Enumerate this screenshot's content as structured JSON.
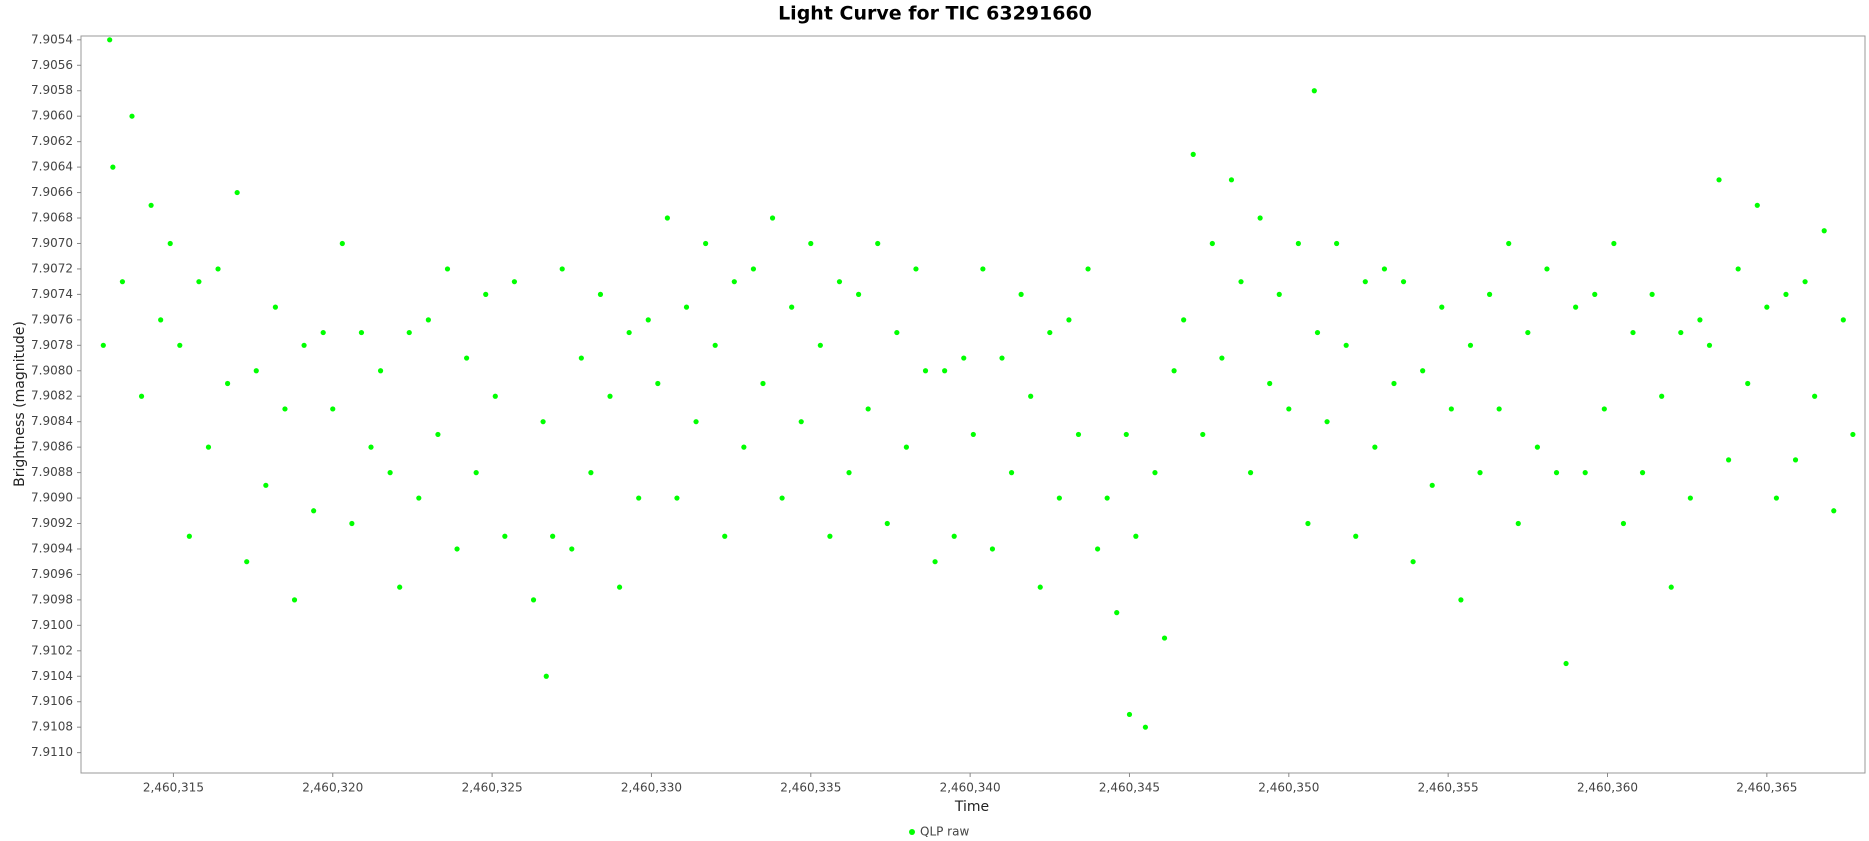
{
  "chart_data": {
    "type": "scatter",
    "title": "Light Curve for TIC 63291660",
    "x_label": "Time",
    "y_label": "Brightness (magnitude)",
    "series": [
      {
        "name": "QLP raw",
        "color": "#00ff00",
        "x": [
          2460312.8,
          2460313.1,
          2460313.4,
          2460313.7,
          2460314.0,
          2460314.3,
          2460314.6,
          2460314.9,
          2460315.2,
          2460315.5,
          2460315.8,
          2460316.1,
          2460316.4,
          2460316.7,
          2460317.0,
          2460317.3,
          2460317.6,
          2460317.9,
          2460318.2,
          2460318.5,
          2460318.8,
          2460319.1,
          2460319.4,
          2460319.7,
          2460320.0,
          2460320.3,
          2460320.6,
          2460320.9,
          2460321.2,
          2460321.5,
          2460321.8,
          2460322.1,
          2460322.4,
          2460322.7,
          2460323.0,
          2460323.3,
          2460323.6,
          2460323.9,
          2460324.2,
          2460324.5,
          2460324.8,
          2460325.1,
          2460325.4,
          2460325.7,
          2460326.3,
          2460326.6,
          2460326.9,
          2460327.2,
          2460327.5,
          2460327.8,
          2460328.1,
          2460328.4,
          2460328.7,
          2460329.0,
          2460329.3,
          2460329.6,
          2460329.9,
          2460330.2,
          2460330.5,
          2460330.8,
          2460331.1,
          2460331.4,
          2460331.7,
          2460332.0,
          2460332.3,
          2460332.6,
          2460332.9,
          2460333.2,
          2460333.5,
          2460333.8,
          2460334.1,
          2460334.4,
          2460334.7,
          2460335.0,
          2460335.3,
          2460335.6,
          2460335.9,
          2460336.2,
          2460336.5,
          2460336.8,
          2460337.1,
          2460337.4,
          2460337.7,
          2460338.0,
          2460338.3,
          2460338.6,
          2460338.9,
          2460339.2,
          2460339.5,
          2460339.8,
          2460340.1,
          2460340.4,
          2460340.7,
          2460341.0,
          2460341.3,
          2460341.6,
          2460341.9,
          2460342.2,
          2460342.5,
          2460342.8,
          2460343.1,
          2460343.4,
          2460343.7,
          2460344.0,
          2460344.3,
          2460344.6,
          2460344.9,
          2460345.2,
          2460345.5,
          2460345.8,
          2460346.1,
          2460346.4,
          2460346.7,
          2460347.0,
          2460347.3,
          2460347.6,
          2460347.9,
          2460348.2,
          2460348.5,
          2460348.8,
          2460349.1,
          2460349.4,
          2460349.7,
          2460350.0,
          2460350.3,
          2460350.6,
          2460350.9,
          2460351.2,
          2460351.5,
          2460351.8,
          2460352.1,
          2460352.4,
          2460352.7,
          2460353.0,
          2460353.3,
          2460353.6,
          2460353.9,
          2460354.2,
          2460354.5,
          2460354.8,
          2460355.1,
          2460355.4,
          2460355.7,
          2460356.0,
          2460356.3,
          2460356.6,
          2460356.9,
          2460357.2,
          2460357.5,
          2460357.8,
          2460358.1,
          2460358.4,
          2460358.7,
          2460359.0,
          2460359.3,
          2460359.6,
          2460359.9,
          2460360.2,
          2460360.5,
          2460360.8,
          2460361.1,
          2460361.4,
          2460361.7,
          2460362.0,
          2460362.3,
          2460362.6,
          2460362.9,
          2460363.2,
          2460363.5,
          2460363.8,
          2460364.1,
          2460364.4,
          2460364.7,
          2460365.0,
          2460365.3,
          2460365.6,
          2460365.9,
          2460366.2,
          2460366.5,
          2460366.8,
          2460367.1,
          2460367.4,
          2460367.7,
          2460313.0,
          2460345.0,
          2460326.7,
          2460350.8
        ],
        "values": [
          7.9078,
          7.9064,
          7.9073,
          7.906,
          7.9082,
          7.9067,
          7.9076,
          7.907,
          7.9078,
          7.9093,
          7.9073,
          7.9086,
          7.9072,
          7.9081,
          7.9066,
          7.9095,
          7.908,
          7.9089,
          7.9075,
          7.9083,
          7.9098,
          7.9078,
          7.9091,
          7.9077,
          7.9083,
          7.907,
          7.9092,
          7.9077,
          7.9086,
          7.908,
          7.9088,
          7.9097,
          7.9077,
          7.909,
          7.9076,
          7.9085,
          7.9072,
          7.9094,
          7.9079,
          7.9088,
          7.9074,
          7.9082,
          7.9093,
          7.9073,
          7.9098,
          7.9084,
          7.9093,
          7.9072,
          7.9094,
          7.9079,
          7.9088,
          7.9074,
          7.9082,
          7.9097,
          7.9077,
          7.909,
          7.9076,
          7.9081,
          7.9068,
          7.909,
          7.9075,
          7.9084,
          7.907,
          7.9078,
          7.9093,
          7.9073,
          7.9086,
          7.9072,
          7.9081,
          7.9068,
          7.909,
          7.9075,
          7.9084,
          7.907,
          7.9078,
          7.9093,
          7.9073,
          7.9088,
          7.9074,
          7.9083,
          7.907,
          7.9092,
          7.9077,
          7.9086,
          7.9072,
          7.908,
          7.9095,
          7.908,
          7.9093,
          7.9079,
          7.9085,
          7.9072,
          7.9094,
          7.9079,
          7.9088,
          7.9074,
          7.9082,
          7.9097,
          7.9077,
          7.909,
          7.9076,
          7.9085,
          7.9072,
          7.9094,
          7.909,
          7.9099,
          7.9085,
          7.9093,
          7.9108,
          7.9088,
          7.9101,
          7.908,
          7.9076,
          7.9063,
          7.9085,
          7.907,
          7.9079,
          7.9065,
          7.9073,
          7.9088,
          7.9068,
          7.9081,
          7.9074,
          7.9083,
          7.907,
          7.9092,
          7.9077,
          7.9084,
          7.907,
          7.9078,
          7.9093,
          7.9073,
          7.9086,
          7.9072,
          7.9081,
          7.9073,
          7.9095,
          7.908,
          7.9089,
          7.9075,
          7.9083,
          7.9098,
          7.9078,
          7.9088,
          7.9074,
          7.9083,
          7.907,
          7.9092,
          7.9077,
          7.9086,
          7.9072,
          7.9088,
          7.9103,
          7.9075,
          7.9088,
          7.9074,
          7.9083,
          7.907,
          7.9092,
          7.9077,
          7.9088,
          7.9074,
          7.9082,
          7.9097,
          7.9077,
          7.909,
          7.9076,
          7.9078,
          7.9065,
          7.9087,
          7.9072,
          7.9081,
          7.9067,
          7.9075,
          7.909,
          7.9074,
          7.9087,
          7.9073,
          7.9082,
          7.9069,
          7.9091,
          7.9076,
          7.9085,
          7.9054,
          7.9107,
          7.9104,
          7.9058
        ]
      }
    ],
    "xlim": [
      2460312.1,
      2460368.08
    ],
    "xticks": [
      {
        "value": 2460315,
        "label": "2,460,315"
      },
      {
        "value": 2460320,
        "label": "2,460,320"
      },
      {
        "value": 2460325,
        "label": "2,460,325"
      },
      {
        "value": 2460330,
        "label": "2,460,330"
      },
      {
        "value": 2460335,
        "label": "2,460,335"
      },
      {
        "value": 2460340,
        "label": "2,460,340"
      },
      {
        "value": 2460345,
        "label": "2,460,345"
      },
      {
        "value": 2460350,
        "label": "2,460,350"
      },
      {
        "value": 2460355,
        "label": "2,460,355"
      },
      {
        "value": 2460360,
        "label": "2,460,360"
      },
      {
        "value": 2460365,
        "label": "2,460,365"
      }
    ],
    "ylim": [
      7.91116,
      7.90537
    ],
    "yticks": [
      7.9054,
      7.9056,
      7.9058,
      {
        "value": 7.906,
        "label": "7.9060"
      },
      7.9062,
      7.9064,
      7.9066,
      7.9068,
      {
        "value": 7.907,
        "label": "7.9070"
      },
      7.9072,
      7.9074,
      7.9076,
      7.9078,
      {
        "value": 7.908,
        "label": "7.9080"
      },
      7.9082,
      7.9084,
      7.9086,
      7.9088,
      {
        "value": 7.909,
        "label": "7.9090"
      },
      7.9092,
      7.9094,
      7.9096,
      7.9098,
      {
        "value": 7.91,
        "label": "7.9100"
      },
      7.9102,
      7.9104,
      7.9106,
      7.9108,
      {
        "value": 7.911,
        "label": "7.9110"
      }
    ],
    "grid": false,
    "legend": "bottom"
  }
}
